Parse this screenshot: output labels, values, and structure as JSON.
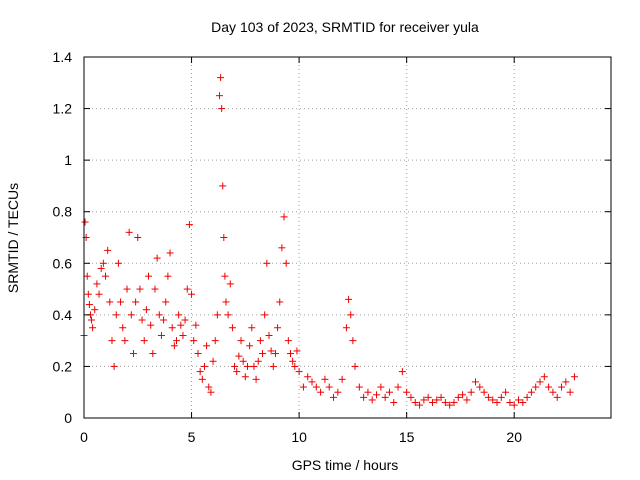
{
  "chart_data": {
    "type": "scatter",
    "title": "Day 103 of 2023, SRMTID for receiver yula",
    "xlabel": "GPS time / hours",
    "ylabel": "SRMTID / TECUs",
    "xlim": [
      0,
      24.5
    ],
    "ylim": [
      0,
      1.4
    ],
    "xticks": [
      0,
      5,
      10,
      15,
      20
    ],
    "xtick_labels": [
      "0",
      "5",
      "10",
      "15",
      "20"
    ],
    "yticks": [
      0,
      0.2,
      0.4,
      0.6,
      0.8,
      1.0,
      1.2,
      1.4
    ],
    "ytick_labels": [
      "0",
      "0.2",
      "0.4",
      "0.6",
      "0.8",
      "1",
      "1.2",
      "1.4"
    ],
    "grid": true,
    "marker": "+",
    "color": "#ee0000",
    "series": [
      {
        "name": "SRMTID",
        "x": [
          0.0,
          0.05,
          0.1,
          0.15,
          0.2,
          0.25,
          0.3,
          0.35,
          0.4,
          0.5,
          0.6,
          0.7,
          0.8,
          0.9,
          1.0,
          1.1,
          1.2,
          1.3,
          1.4,
          1.5,
          1.6,
          1.7,
          1.8,
          1.9,
          2.0,
          2.1,
          2.2,
          2.3,
          2.4,
          2.5,
          2.6,
          2.7,
          2.8,
          2.9,
          3.0,
          3.1,
          3.2,
          3.3,
          3.4,
          3.5,
          3.6,
          3.7,
          3.8,
          3.9,
          4.0,
          4.1,
          4.2,
          4.3,
          4.4,
          4.5,
          4.6,
          4.7,
          4.8,
          4.9,
          5.0,
          5.1,
          5.2,
          5.3,
          5.4,
          5.5,
          5.6,
          5.7,
          5.8,
          5.9,
          6.0,
          6.1,
          6.2,
          6.3,
          6.35,
          6.4,
          6.45,
          6.5,
          6.55,
          6.6,
          6.7,
          6.8,
          6.9,
          7.0,
          7.1,
          7.2,
          7.3,
          7.4,
          7.5,
          7.6,
          7.7,
          7.8,
          7.9,
          8.0,
          8.1,
          8.2,
          8.3,
          8.4,
          8.5,
          8.6,
          8.7,
          8.8,
          8.9,
          9.0,
          9.1,
          9.2,
          9.3,
          9.4,
          9.5,
          9.6,
          9.7,
          9.8,
          9.9,
          10.0,
          10.2,
          10.4,
          10.6,
          10.8,
          11.0,
          11.2,
          11.4,
          11.6,
          11.8,
          12.0,
          12.2,
          12.3,
          12.4,
          12.5,
          12.6,
          12.8,
          13.0,
          13.2,
          13.4,
          13.6,
          13.8,
          14.0,
          14.2,
          14.4,
          14.6,
          14.8,
          15.0,
          15.2,
          15.4,
          15.6,
          15.8,
          16.0,
          16.2,
          16.4,
          16.6,
          16.8,
          17.0,
          17.2,
          17.4,
          17.6,
          17.8,
          18.0,
          18.2,
          18.4,
          18.6,
          18.8,
          19.0,
          19.2,
          19.4,
          19.6,
          19.8,
          20.0,
          20.2,
          20.4,
          20.6,
          20.8,
          21.0,
          21.2,
          21.4,
          21.6,
          21.8,
          22.0,
          22.2,
          22.4,
          22.6,
          22.8
        ],
        "y": [
          0.32,
          0.76,
          0.7,
          0.55,
          0.48,
          0.44,
          0.4,
          0.38,
          0.35,
          0.42,
          0.52,
          0.48,
          0.58,
          0.6,
          0.55,
          0.65,
          0.45,
          0.3,
          0.2,
          0.4,
          0.6,
          0.45,
          0.35,
          0.3,
          0.5,
          0.72,
          0.4,
          0.25,
          0.45,
          0.7,
          0.5,
          0.38,
          0.3,
          0.42,
          0.55,
          0.36,
          0.25,
          0.5,
          0.62,
          0.4,
          0.32,
          0.38,
          0.45,
          0.55,
          0.64,
          0.35,
          0.28,
          0.3,
          0.4,
          0.36,
          0.32,
          0.38,
          0.5,
          0.75,
          0.48,
          0.3,
          0.36,
          0.25,
          0.18,
          0.15,
          0.2,
          0.28,
          0.12,
          0.1,
          0.22,
          0.3,
          0.4,
          1.25,
          1.32,
          1.2,
          0.9,
          0.7,
          0.55,
          0.45,
          0.4,
          0.52,
          0.35,
          0.2,
          0.18,
          0.24,
          0.3,
          0.22,
          0.16,
          0.2,
          0.28,
          0.35,
          0.2,
          0.15,
          0.22,
          0.3,
          0.25,
          0.4,
          0.6,
          0.32,
          0.26,
          0.2,
          0.25,
          0.35,
          0.45,
          0.66,
          0.78,
          0.6,
          0.3,
          0.25,
          0.22,
          0.2,
          0.26,
          0.18,
          0.12,
          0.16,
          0.14,
          0.12,
          0.1,
          0.15,
          0.12,
          0.08,
          0.1,
          0.15,
          0.35,
          0.46,
          0.4,
          0.3,
          0.2,
          0.12,
          0.08,
          0.1,
          0.07,
          0.09,
          0.12,
          0.08,
          0.1,
          0.06,
          0.12,
          0.18,
          0.1,
          0.08,
          0.06,
          0.05,
          0.07,
          0.08,
          0.06,
          0.07,
          0.08,
          0.06,
          0.05,
          0.06,
          0.08,
          0.09,
          0.07,
          0.1,
          0.14,
          0.12,
          0.1,
          0.08,
          0.07,
          0.06,
          0.08,
          0.1,
          0.06,
          0.05,
          0.07,
          0.06,
          0.08,
          0.1,
          0.12,
          0.14,
          0.16,
          0.12,
          0.1,
          0.08,
          0.12,
          0.14,
          0.1,
          0.16
        ]
      }
    ]
  }
}
